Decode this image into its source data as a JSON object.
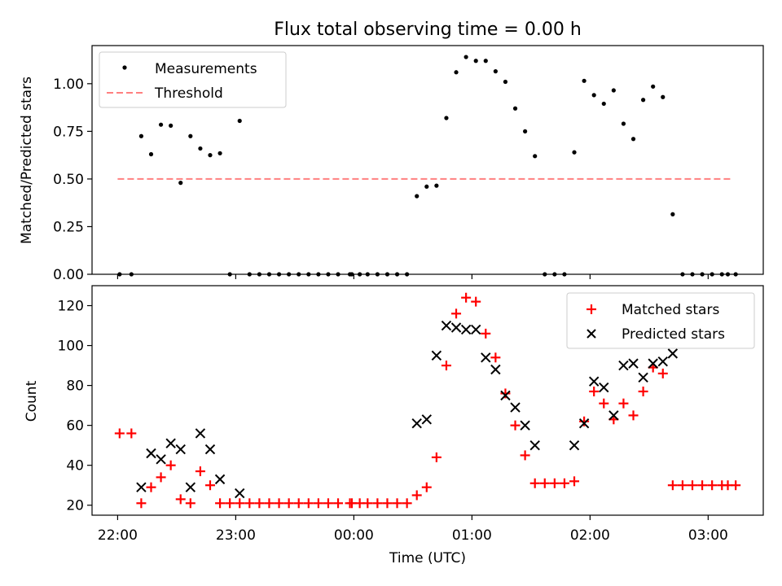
{
  "chart_data": [
    {
      "type": "scatter",
      "title": "Flux total observing time = 0.00 h",
      "xlabel": "",
      "ylabel": "Matched/Predicted stars",
      "xlim": [
        "21:47",
        "03:28"
      ],
      "ylim": [
        0.0,
        1.2
      ],
      "yticks": [
        0.0,
        0.25,
        0.5,
        0.75,
        1.0
      ],
      "ytick_labels": [
        "0.00",
        "0.25",
        "0.50",
        "0.75",
        "1.00"
      ],
      "legend_position": "top-left",
      "threshold": {
        "name": "Threshold",
        "value": 0.5,
        "x": [
          "22:00",
          "03:12"
        ],
        "color": "#ff8080"
      },
      "series": [
        {
          "name": "Measurements",
          "color": "#000000",
          "points": [
            [
              "22:01",
              0.0
            ],
            [
              "22:07",
              0.0
            ],
            [
              "22:12",
              0.725
            ],
            [
              "22:17",
              0.63
            ],
            [
              "22:22",
              0.785
            ],
            [
              "22:27",
              0.78
            ],
            [
              "22:32",
              0.48
            ],
            [
              "22:37",
              0.725
            ],
            [
              "22:42",
              0.66
            ],
            [
              "22:47",
              0.625
            ],
            [
              "22:52",
              0.635
            ],
            [
              "22:57",
              0.0
            ],
            [
              "23:02",
              0.805
            ],
            [
              "23:07",
              0.0
            ],
            [
              "23:12",
              0.0
            ],
            [
              "23:17",
              0.0
            ],
            [
              "23:22",
              0.0
            ],
            [
              "23:27",
              0.0
            ],
            [
              "23:32",
              0.0
            ],
            [
              "23:37",
              0.0
            ],
            [
              "23:42",
              0.0
            ],
            [
              "23:47",
              0.0
            ],
            [
              "23:52",
              0.0
            ],
            [
              "23:58",
              0.0
            ],
            [
              "23:59",
              0.0
            ],
            [
              "00:03",
              0.0
            ],
            [
              "00:07",
              0.0
            ],
            [
              "00:12",
              0.0
            ],
            [
              "00:17",
              0.0
            ],
            [
              "00:22",
              0.0
            ],
            [
              "00:27",
              0.0
            ],
            [
              "00:32",
              0.41
            ],
            [
              "00:37",
              0.46
            ],
            [
              "00:42",
              0.465
            ],
            [
              "00:47",
              0.82
            ],
            [
              "00:52",
              1.06
            ],
            [
              "00:57",
              1.14
            ],
            [
              "01:02",
              1.12
            ],
            [
              "01:07",
              1.12
            ],
            [
              "01:12",
              1.065
            ],
            [
              "01:17",
              1.01
            ],
            [
              "01:22",
              0.87
            ],
            [
              "01:27",
              0.75
            ],
            [
              "01:32",
              0.62
            ],
            [
              "01:37",
              0.0
            ],
            [
              "01:42",
              0.0
            ],
            [
              "01:47",
              0.0
            ],
            [
              "01:52",
              0.64
            ],
            [
              "01:57",
              1.015
            ],
            [
              "02:02",
              0.94
            ],
            [
              "02:07",
              0.895
            ],
            [
              "02:12",
              0.965
            ],
            [
              "02:17",
              0.79
            ],
            [
              "02:22",
              0.71
            ],
            [
              "02:27",
              0.915
            ],
            [
              "02:32",
              0.985
            ],
            [
              "02:37",
              0.93
            ],
            [
              "02:42",
              0.315
            ],
            [
              "02:47",
              0.0
            ],
            [
              "02:52",
              0.0
            ],
            [
              "02:57",
              0.0
            ],
            [
              "03:02",
              0.0
            ],
            [
              "03:07",
              0.0
            ],
            [
              "03:10",
              0.0
            ],
            [
              "03:14",
              0.0
            ]
          ]
        }
      ]
    },
    {
      "type": "scatter",
      "title": "",
      "xlabel": "Time (UTC)",
      "ylabel": "Count",
      "xlim": [
        "21:47",
        "03:28"
      ],
      "ylim": [
        15,
        130
      ],
      "yticks": [
        20,
        40,
        60,
        80,
        100,
        120
      ],
      "xticks": [
        "22:00",
        "23:00",
        "00:00",
        "01:00",
        "02:00",
        "03:00"
      ],
      "legend_position": "top-right",
      "series": [
        {
          "name": "Matched stars",
          "marker": "plus",
          "color": "#ff0000",
          "points": [
            [
              "22:01",
              56
            ],
            [
              "22:07",
              56
            ],
            [
              "22:12",
              21
            ],
            [
              "22:17",
              29
            ],
            [
              "22:22",
              34
            ],
            [
              "22:27",
              40
            ],
            [
              "22:32",
              23
            ],
            [
              "22:37",
              21
            ],
            [
              "22:42",
              37
            ],
            [
              "22:47",
              30
            ],
            [
              "22:52",
              21
            ],
            [
              "22:57",
              21
            ],
            [
              "23:02",
              21
            ],
            [
              "23:07",
              21
            ],
            [
              "23:12",
              21
            ],
            [
              "23:17",
              21
            ],
            [
              "23:22",
              21
            ],
            [
              "23:27",
              21
            ],
            [
              "23:32",
              21
            ],
            [
              "23:37",
              21
            ],
            [
              "23:42",
              21
            ],
            [
              "23:47",
              21
            ],
            [
              "23:52",
              21
            ],
            [
              "23:58",
              21
            ],
            [
              "23:59",
              21
            ],
            [
              "00:03",
              21
            ],
            [
              "00:07",
              21
            ],
            [
              "00:12",
              21
            ],
            [
              "00:17",
              21
            ],
            [
              "00:22",
              21
            ],
            [
              "00:27",
              21
            ],
            [
              "00:32",
              25
            ],
            [
              "00:37",
              29
            ],
            [
              "00:42",
              44
            ],
            [
              "00:47",
              90
            ],
            [
              "00:52",
              116
            ],
            [
              "00:57",
              124
            ],
            [
              "01:02",
              122
            ],
            [
              "01:07",
              106
            ],
            [
              "01:12",
              94
            ],
            [
              "01:17",
              76
            ],
            [
              "01:22",
              60
            ],
            [
              "01:27",
              45
            ],
            [
              "01:32",
              31
            ],
            [
              "01:37",
              31
            ],
            [
              "01:42",
              31
            ],
            [
              "01:47",
              31
            ],
            [
              "01:52",
              32
            ],
            [
              "01:57",
              62
            ],
            [
              "02:02",
              77
            ],
            [
              "02:07",
              71
            ],
            [
              "02:12",
              63
            ],
            [
              "02:17",
              71
            ],
            [
              "02:22",
              65
            ],
            [
              "02:27",
              77
            ],
            [
              "02:32",
              89
            ],
            [
              "02:37",
              86
            ],
            [
              "02:42",
              30
            ],
            [
              "02:47",
              30
            ],
            [
              "02:52",
              30
            ],
            [
              "02:57",
              30
            ],
            [
              "03:02",
              30
            ],
            [
              "03:07",
              30
            ],
            [
              "03:10",
              30
            ],
            [
              "03:14",
              30
            ]
          ]
        },
        {
          "name": "Predicted stars",
          "marker": "x",
          "color": "#000000",
          "points": [
            [
              "22:12",
              29
            ],
            [
              "22:17",
              46
            ],
            [
              "22:22",
              43
            ],
            [
              "22:27",
              51
            ],
            [
              "22:32",
              48
            ],
            [
              "22:37",
              29
            ],
            [
              "22:42",
              56
            ],
            [
              "22:47",
              48
            ],
            [
              "22:52",
              33
            ],
            [
              "23:02",
              26
            ],
            [
              "00:32",
              61
            ],
            [
              "00:37",
              63
            ],
            [
              "00:42",
              95
            ],
            [
              "00:47",
              110
            ],
            [
              "00:52",
              109
            ],
            [
              "00:57",
              108
            ],
            [
              "01:02",
              108
            ],
            [
              "01:07",
              94
            ],
            [
              "01:12",
              88
            ],
            [
              "01:17",
              75
            ],
            [
              "01:22",
              69
            ],
            [
              "01:27",
              60
            ],
            [
              "01:32",
              50
            ],
            [
              "01:52",
              50
            ],
            [
              "01:57",
              61
            ],
            [
              "02:02",
              82
            ],
            [
              "02:07",
              79
            ],
            [
              "02:12",
              65
            ],
            [
              "02:17",
              90
            ],
            [
              "02:22",
              91
            ],
            [
              "02:27",
              84
            ],
            [
              "02:32",
              91
            ],
            [
              "02:37",
              92
            ],
            [
              "02:42",
              96
            ]
          ]
        }
      ]
    }
  ]
}
